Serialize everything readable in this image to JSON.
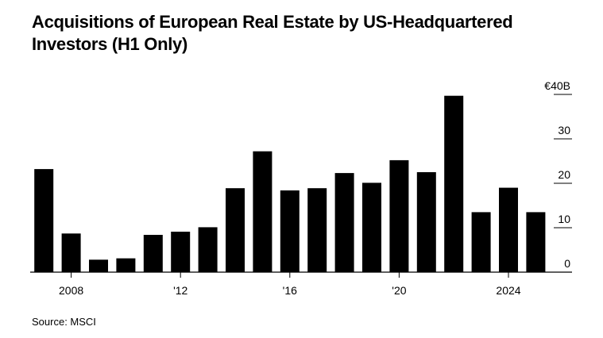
{
  "title": "Acquisitions of European Real Estate by US-Headquartered Investors (H1 Only)",
  "source": "Source: MSCI",
  "chart_data": {
    "type": "bar",
    "title": "Acquisitions of European Real Estate by US-Headquartered Investors (H1 Only)",
    "categories": [
      "2007",
      "2008",
      "2009",
      "2010",
      "2011",
      "2012",
      "2013",
      "2014",
      "2015",
      "2016",
      "2017",
      "2018",
      "2019",
      "2020",
      "2021",
      "2022",
      "2023",
      "2024",
      "2025"
    ],
    "values": [
      23.2,
      8.7,
      2.8,
      3.1,
      8.4,
      9.1,
      10.1,
      18.9,
      27.2,
      18.4,
      18.9,
      22.3,
      20.1,
      25.2,
      22.5,
      39.7,
      13.5,
      19.0,
      13.5
    ],
    "ylim": [
      0,
      40
    ],
    "y_ticks": [
      {
        "value": 40,
        "label": "€40B"
      },
      {
        "value": 30,
        "label": "30"
      },
      {
        "value": 20,
        "label": "20"
      },
      {
        "value": 10,
        "label": "10"
      },
      {
        "value": 0,
        "label": "0"
      }
    ],
    "x_tick_labels": [
      {
        "category": "2008",
        "label": "2008"
      },
      {
        "category": "2012",
        "label": "'12"
      },
      {
        "category": "2016",
        "label": "'16"
      },
      {
        "category": "2020",
        "label": "'20"
      },
      {
        "category": "2024",
        "label": "2024"
      }
    ],
    "bar_color": "#000000",
    "gridlines": false,
    "y_axis_position": "right"
  }
}
